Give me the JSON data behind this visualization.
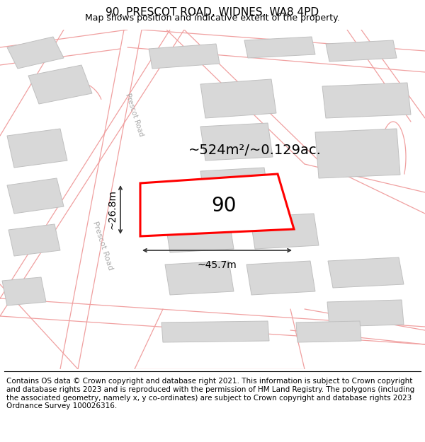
{
  "title": "90, PRESCOT ROAD, WIDNES, WA8 4PD",
  "subtitle": "Map shows position and indicative extent of the property.",
  "footer": "Contains OS data © Crown copyright and database right 2021. This information is subject to Crown copyright and database rights 2023 and is reproduced with the permission of HM Land Registry. The polygons (including the associated geometry, namely x, y co-ordinates) are subject to Crown copyright and database rights 2023 Ordnance Survey 100026316.",
  "map_bg": "#ffffff",
  "road_line_color": "#f0a0a0",
  "building_fill": "#d8d8d8",
  "building_outline": "#c0c0c0",
  "highlight_fill": "#ffffff",
  "highlight_outline": "#ff0000",
  "highlight_lw": 2.2,
  "property_label": "90",
  "area_label": "~524m²/~0.129ac.",
  "width_label": "~45.7m",
  "height_label": "~26.8m",
  "title_fontsize": 11,
  "subtitle_fontsize": 9,
  "footer_fontsize": 7.5,
  "prop_label_fontsize": 20,
  "area_label_fontsize": 14,
  "dim_fontsize": 10,
  "road_label_color": "#aaaaaa",
  "road_label_fontsize": 8,
  "dim_color": "#333333"
}
